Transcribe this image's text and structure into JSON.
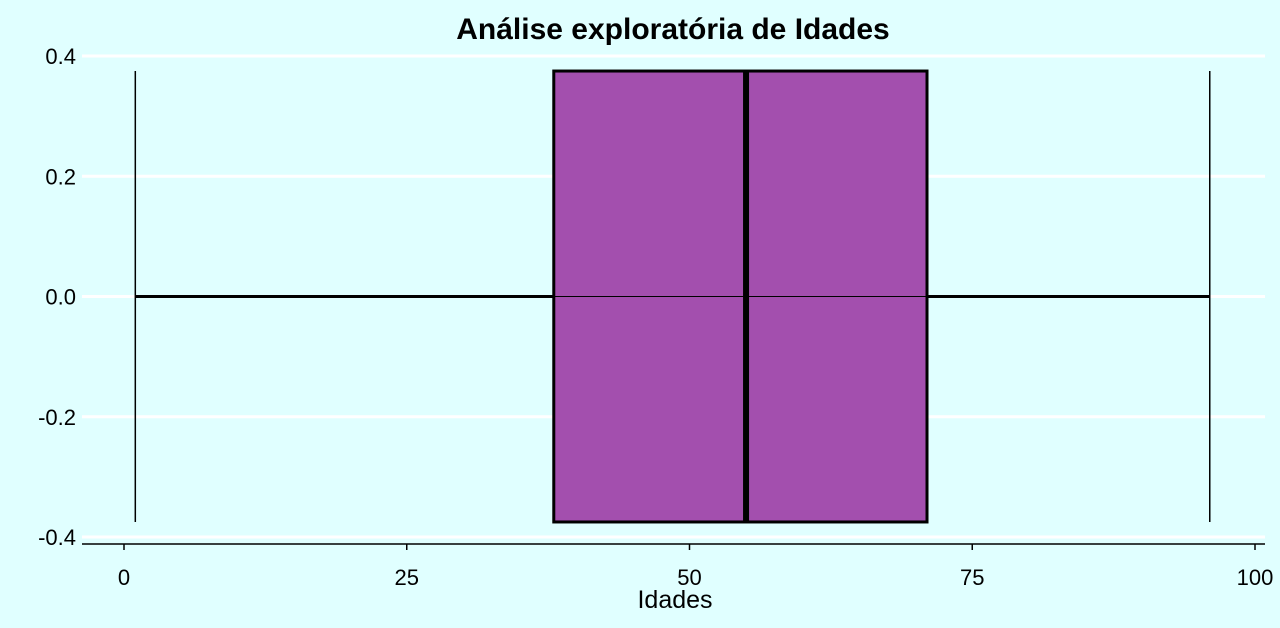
{
  "chart_data": {
    "type": "boxplot",
    "title": "Análise exploratória de Idades",
    "xlabel": "Idades",
    "ylabel": "",
    "orientation": "horizontal",
    "xlim": [
      0,
      100
    ],
    "ylim": [
      -0.4,
      0.4
    ],
    "x_ticks": [
      0,
      25,
      50,
      75,
      100
    ],
    "x_tick_labels": [
      "0",
      "25",
      "50",
      "75",
      "100"
    ],
    "y_ticks": [
      0.4,
      0.2,
      0.0,
      -0.2,
      -0.4
    ],
    "y_tick_labels": [
      "0.4",
      "0.2",
      "0.0",
      "-0.2",
      "-0.4"
    ],
    "box": {
      "min": 1,
      "q1": 38,
      "median": 55,
      "q3": 71,
      "max": 96,
      "y_extent": [
        -0.375,
        0.375
      ]
    },
    "grid": true,
    "colors": {
      "background": "#e0ffff",
      "box_fill": "#a34fae",
      "outline": "#000000",
      "grid": "#ffffff"
    }
  }
}
